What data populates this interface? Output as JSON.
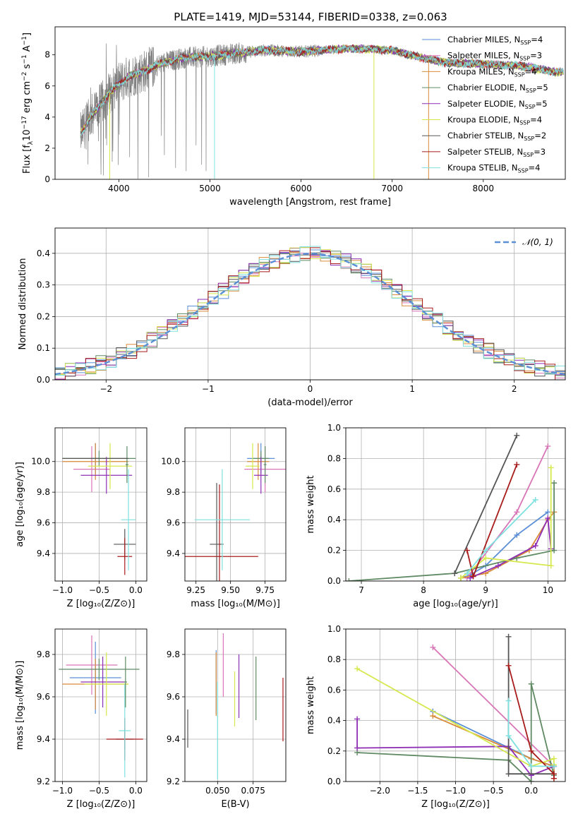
{
  "figure": {
    "title": "PLATE=1419, MJD=53144, FIBERID=0338, z=0.063"
  },
  "colors": {
    "Chabrier MILES": "#5b8fd6",
    "Salpeter MILES": "#d876b8",
    "Kroupa MILES": "#d98b3a",
    "Chabrier ELODIE": "#5f8a63",
    "Salpeter ELODIE": "#8e2fb5",
    "Kroupa ELODIE": "#d6e84c",
    "Chabrier STELIB": "#555555",
    "Salpeter STELIB": "#a81b1b",
    "Kroupa STELIB": "#7fe0e0",
    "data": "#808080",
    "gaussian": "#5b8fd6"
  },
  "chart_data": [
    {
      "id": "spectrum",
      "type": "line",
      "title": "PLATE=1419, MJD=53144, FIBERID=0338, z=0.063",
      "xlabel": "wavelength [Angstrom, rest frame]",
      "ylabel": "Flux [f$_\\lambda$10$^{-17}$ erg cm$^{-2}$ s$^{-1}$ A$^{-1}$]",
      "ylabel_parts": [
        "Flux [f",
        "λ",
        "10",
        "−17",
        " erg cm",
        "−2",
        " s",
        "−1",
        " A",
        "−1",
        "]"
      ],
      "xlim": [
        3300,
        8900
      ],
      "ylim": [
        0,
        9.8
      ],
      "xticks": [
        4000,
        5000,
        6000,
        7000,
        8000
      ],
      "yticks": [
        0,
        2,
        4,
        6,
        8
      ],
      "legend_position": "upper right",
      "legend": [
        {
          "name": "Chabrier MILES",
          "nssp": "4"
        },
        {
          "name": "Salpeter MILES",
          "nssp": "3"
        },
        {
          "name": "Kroupa MILES",
          "nssp": "4"
        },
        {
          "name": "Chabrier ELODIE",
          "nssp": "5"
        },
        {
          "name": "Salpeter ELODIE",
          "nssp": "5"
        },
        {
          "name": "Kroupa ELODIE",
          "nssp": "4"
        },
        {
          "name": "Chabrier STELIB",
          "nssp": "2"
        },
        {
          "name": "Salpeter STELIB",
          "nssp": "3"
        },
        {
          "name": "Kroupa STELIB",
          "nssp": "4"
        }
      ],
      "continuum": {
        "x": [
          3580,
          3650,
          3700,
          3800,
          3900,
          4000,
          4100,
          4200,
          4300,
          4400,
          4500,
          4700,
          5000,
          5300,
          5600,
          6000,
          6500,
          7000,
          7200,
          7400,
          7600,
          8000,
          8400,
          8800
        ],
        "y": [
          2.9,
          3.6,
          4.1,
          4.8,
          5.6,
          6.1,
          6.6,
          6.8,
          7.0,
          7.3,
          7.5,
          7.8,
          7.9,
          8.1,
          8.3,
          8.2,
          8.4,
          8.3,
          8.0,
          7.7,
          7.5,
          7.4,
          7.3,
          6.9
        ]
      }
    },
    {
      "id": "residuals",
      "type": "histogram",
      "xlabel": "(data-model)/error",
      "ylabel": "Normed distribution",
      "xlim": [
        -2.5,
        2.5
      ],
      "ylim": [
        0,
        0.48
      ],
      "xticks": [
        -2,
        -1,
        0,
        1,
        2
      ],
      "yticks": [
        0.0,
        0.1,
        0.2,
        0.3,
        0.4
      ],
      "grid": true,
      "legend_position": "upper right",
      "legend": [
        "𝒩(0, 1)"
      ],
      "gaussian": {
        "mu": 0,
        "sigma": 1
      },
      "bin_width": 0.1
    },
    {
      "id": "age_Z",
      "type": "errorbar",
      "xlabel": "Z [log₁₀(Z/Z⊙)]",
      "ylabel": "age  [log₁₀(age/yr)]",
      "xlim": [
        -1.1,
        0.15
      ],
      "ylim": [
        9.22,
        10.22
      ],
      "xticks": [
        -1.0,
        -0.5,
        0.0
      ],
      "yticks": [
        9.4,
        9.6,
        9.8,
        10.0
      ],
      "grid": true,
      "points": [
        {
          "series": "Chabrier MILES",
          "x": -0.55,
          "xerr": 0.05,
          "y": 10.02,
          "yerr": 0.1
        },
        {
          "series": "Salpeter MILES",
          "x": -0.6,
          "xerr": 0.25,
          "y": 9.95,
          "yerr": 0.15
        },
        {
          "series": "Kroupa MILES",
          "x": -0.55,
          "xerr": 0.45,
          "y": 10.0,
          "yerr": 0.12
        },
        {
          "series": "Chabrier ELODIE",
          "x": -0.5,
          "xerr": 0.5,
          "y": 10.02,
          "yerr": 0.05
        },
        {
          "series": "Salpeter ELODIE",
          "x": -0.4,
          "xerr": 0.35,
          "y": 9.91,
          "yerr": 0.12
        },
        {
          "series": "Kroupa ELODIE",
          "x": -0.35,
          "xerr": 0.3,
          "y": 9.97,
          "yerr": 0.15
        },
        {
          "series": "Chabrier STELIB",
          "x": -0.15,
          "xerr": 0.15,
          "y": 9.46,
          "yerr": 0.1
        },
        {
          "series": "Salpeter STELIB",
          "x": -0.15,
          "xerr": 0.1,
          "y": 9.38,
          "yerr": 0.12
        },
        {
          "series": "Kroupa STELIB",
          "x": -0.1,
          "xerr": 0.1,
          "y": 9.62,
          "yerr": 0.33
        },
        {
          "series": "Chabrier ELODIE",
          "x": -0.12,
          "xerr": 0.02,
          "y": 9.98,
          "yerr": 0.12
        },
        {
          "series": "Chabrier STELIB",
          "x": -0.55,
          "xerr": 0.45,
          "y": 10.02,
          "yerr": 0.0
        }
      ]
    },
    {
      "id": "age_mass",
      "type": "errorbar",
      "xlabel": "mass [log₁₀(M/M⊙)]",
      "xlim": [
        9.17,
        9.9
      ],
      "ylim": [
        9.22,
        10.22
      ],
      "xticks": [
        9.25,
        9.5,
        9.75
      ],
      "yticks": [
        9.4,
        9.6,
        9.8,
        10.0
      ],
      "grid": true,
      "points": [
        {
          "series": "Chabrier MILES",
          "x": 9.72,
          "xerr": 0.1,
          "y": 10.02,
          "yerr": 0.1
        },
        {
          "series": "Salpeter MILES",
          "x": 9.75,
          "xerr": 0.15,
          "y": 9.95,
          "yerr": 0.15
        },
        {
          "series": "Kroupa MILES",
          "x": 9.7,
          "xerr": 0.08,
          "y": 10.0,
          "yerr": 0.12
        },
        {
          "series": "Chabrier ELODIE",
          "x": 9.72,
          "xerr": 0.06,
          "y": 10.02,
          "yerr": 0.05
        },
        {
          "series": "Salpeter ELODIE",
          "x": 9.72,
          "xerr": 0.05,
          "y": 9.91,
          "yerr": 0.12
        },
        {
          "series": "Kroupa ELODIE",
          "x": 9.66,
          "xerr": 0.05,
          "y": 9.97,
          "yerr": 0.15
        },
        {
          "series": "Chabrier STELIB",
          "x": 9.4,
          "xerr": 0.05,
          "y": 9.46,
          "yerr": 0.4
        },
        {
          "series": "Salpeter STELIB",
          "x": 9.42,
          "xerr": 0.28,
          "y": 9.38,
          "yerr": 0.47
        },
        {
          "series": "Kroupa STELIB",
          "x": 9.44,
          "xerr": 0.2,
          "y": 9.62,
          "yerr": 0.33
        },
        {
          "series": "Chabrier ELODIE",
          "x": 9.75,
          "xerr": 0.01,
          "y": 9.98,
          "yerr": 0.12
        }
      ]
    },
    {
      "id": "weight_age",
      "type": "line",
      "xlabel": "age  [log₁₀(age/yr)]",
      "ylabel": "mass weight",
      "xlim": [
        6.75,
        10.28
      ],
      "ylim": [
        0.0,
        1.0
      ],
      "xticks": [
        7,
        8,
        9,
        10
      ],
      "yticks": [
        0.0,
        0.2,
        0.4,
        0.6,
        0.8,
        1.0
      ],
      "grid": true,
      "series": [
        {
          "name": "Chabrier MILES",
          "x": [
            8.6,
            8.75,
            9.0,
            9.5,
            10.0
          ],
          "y": [
            0.02,
            0.04,
            0.1,
            0.3,
            0.45
          ]
        },
        {
          "name": "Salpeter MILES",
          "x": [
            8.7,
            9.5,
            10.0
          ],
          "y": [
            0.02,
            0.45,
            0.88
          ]
        },
        {
          "name": "Kroupa MILES",
          "x": [
            8.6,
            9.0,
            9.7,
            10.0,
            10.1
          ],
          "y": [
            0.02,
            0.05,
            0.2,
            0.4,
            0.45
          ]
        },
        {
          "name": "Chabrier ELODIE",
          "x": [
            6.8,
            8.5,
            9.5,
            10.1,
            10.1
          ],
          "y": [
            0.0,
            0.05,
            0.15,
            0.2,
            0.64
          ]
        },
        {
          "name": "Salpeter ELODIE",
          "x": [
            8.75,
            9.2,
            9.8,
            10.0,
            10.05
          ],
          "y": [
            0.02,
            0.1,
            0.23,
            0.41,
            0.21
          ]
        },
        {
          "name": "Kroupa ELODIE",
          "x": [
            8.6,
            9.0,
            10.05,
            10.05
          ],
          "y": [
            0.02,
            0.15,
            0.1,
            0.74
          ]
        },
        {
          "name": "Chabrier STELIB",
          "x": [
            8.5,
            9.5
          ],
          "y": [
            0.05,
            0.95
          ]
        },
        {
          "name": "Salpeter STELIB",
          "x": [
            8.7,
            8.8,
            9.5
          ],
          "y": [
            0.2,
            0.03,
            0.76
          ]
        },
        {
          "name": "Kroupa STELIB",
          "x": [
            8.7,
            9.0,
            9.8
          ],
          "y": [
            0.05,
            0.2,
            0.53
          ]
        }
      ]
    },
    {
      "id": "mass_Z",
      "type": "errorbar",
      "xlabel": "Z [log₁₀(Z/Z⊙)]",
      "ylabel": "mass [log₁₀(M/M⊙)]",
      "xlim": [
        -1.1,
        0.15
      ],
      "ylim": [
        9.2,
        9.92
      ],
      "xticks": [
        -1.0,
        -0.5,
        0.0
      ],
      "yticks": [
        9.2,
        9.4,
        9.6,
        9.8
      ],
      "grid": true,
      "points": [
        {
          "series": "Chabrier MILES",
          "x": -0.55,
          "xerr": 0.35,
          "y": 9.69,
          "yerr": 0.17
        },
        {
          "series": "Salpeter MILES",
          "x": -0.6,
          "xerr": 0.35,
          "y": 9.75,
          "yerr": 0.14
        },
        {
          "series": "Kroupa MILES",
          "x": -0.55,
          "xerr": 0.45,
          "y": 9.66,
          "yerr": 0.12
        },
        {
          "series": "Chabrier ELODIE",
          "x": -0.5,
          "xerr": 0.55,
          "y": 9.73,
          "yerr": 0.05
        },
        {
          "series": "Salpeter ELODIE",
          "x": -0.45,
          "xerr": 0.3,
          "y": 9.67,
          "yerr": 0.12
        },
        {
          "series": "Kroupa ELODIE",
          "x": -0.4,
          "xerr": 0.3,
          "y": 9.66,
          "yerr": 0.15
        },
        {
          "series": "Chabrier STELIB",
          "x": -0.15,
          "xerr": 0.12,
          "y": 9.4,
          "yerr": 0.05
        },
        {
          "series": "Salpeter STELIB",
          "x": -0.15,
          "xerr": 0.25,
          "y": 9.4,
          "yerr": 0.1
        },
        {
          "series": "Kroupa STELIB",
          "x": -0.15,
          "xerr": 0.08,
          "y": 9.44,
          "yerr": 0.22
        },
        {
          "series": "Chabrier ELODIE",
          "x": -0.14,
          "xerr": 0.02,
          "y": 9.67,
          "yerr": 0.12
        }
      ]
    },
    {
      "id": "mass_EBV",
      "type": "errorbar",
      "xlabel": "E(B-V)",
      "xlim": [
        0.027,
        0.098
      ],
      "ylim": [
        9.2,
        9.92
      ],
      "xticks": [
        0.05,
        0.075
      ],
      "xticklabels": [
        "0.050",
        "0.075"
      ],
      "yticks": [
        9.2,
        9.4,
        9.6,
        9.8
      ],
      "grid": true,
      "points": [
        {
          "series": "Chabrier STELIB",
          "x": 0.029,
          "y": 9.45,
          "yerr": 0.09
        },
        {
          "series": "Chabrier MILES",
          "x": 0.049,
          "y": 9.67,
          "yerr": 0.15
        },
        {
          "series": "Kroupa MILES",
          "x": 0.049,
          "y": 9.66,
          "yerr": 0.15
        },
        {
          "series": "Kroupa STELIB",
          "x": 0.05,
          "y": 9.44,
          "yerr": 0.23
        },
        {
          "series": "Salpeter MILES",
          "x": 0.054,
          "y": 9.75,
          "yerr": 0.15
        },
        {
          "series": "Kroupa ELODIE",
          "x": 0.062,
          "y": 9.59,
          "yerr": 0.13
        },
        {
          "series": "Salpeter ELODIE",
          "x": 0.065,
          "y": 9.65,
          "yerr": 0.15
        },
        {
          "series": "Chabrier ELODIE",
          "x": 0.077,
          "y": 9.64,
          "yerr": 0.15
        },
        {
          "series": "Salpeter STELIB",
          "x": 0.096,
          "y": 9.54,
          "yerr": 0.15
        }
      ]
    },
    {
      "id": "weight_Z",
      "type": "line",
      "xlabel": "Z [log₁₀(Z/Z⊙)]",
      "ylabel": "mass weight",
      "xlim": [
        -2.45,
        0.45
      ],
      "ylim": [
        0.0,
        1.0
      ],
      "xticks": [
        -2.0,
        -1.5,
        -1.0,
        -0.5,
        0.0
      ],
      "yticks": [
        0.0,
        0.2,
        0.4,
        0.6,
        0.8,
        1.0
      ],
      "grid": true,
      "series": [
        {
          "name": "Chabrier MILES",
          "x": [
            -1.3,
            0.0,
            0.3
          ],
          "y": [
            0.46,
            0.15,
            0.1
          ]
        },
        {
          "name": "Salpeter MILES",
          "x": [
            -1.3,
            0.3
          ],
          "y": [
            0.88,
            0.1
          ]
        },
        {
          "name": "Kroupa MILES",
          "x": [
            -1.3,
            0.0,
            0.3,
            0.3
          ],
          "y": [
            0.43,
            0.15,
            0.1,
            0.02
          ]
        },
        {
          "name": "Chabrier ELODIE",
          "x": [
            -2.3,
            -0.3,
            0.0,
            0.0,
            0.3
          ],
          "y": [
            0.19,
            0.14,
            0.0,
            0.64,
            0.04
          ]
        },
        {
          "name": "Salpeter ELODIE",
          "x": [
            -2.3,
            -2.3,
            -0.3,
            0.0,
            0.3
          ],
          "y": [
            0.41,
            0.22,
            0.23,
            0.04,
            0.1
          ]
        },
        {
          "name": "Kroupa ELODIE",
          "x": [
            -2.3,
            0.0,
            0.3,
            0.3
          ],
          "y": [
            0.74,
            0.1,
            0.15,
            0.11
          ]
        },
        {
          "name": "Chabrier STELIB",
          "x": [
            -0.3,
            -0.3,
            0.3
          ],
          "y": [
            0.95,
            0.05,
            0.05
          ]
        },
        {
          "name": "Salpeter STELIB",
          "x": [
            -0.3,
            0.0,
            0.3,
            0.3
          ],
          "y": [
            0.76,
            0.2,
            0.05,
            0.02
          ]
        },
        {
          "name": "Kroupa STELIB",
          "x": [
            -0.3,
            -0.3,
            0.0,
            0.3
          ],
          "y": [
            0.53,
            0.3,
            0.1,
            0.1
          ]
        }
      ]
    }
  ]
}
